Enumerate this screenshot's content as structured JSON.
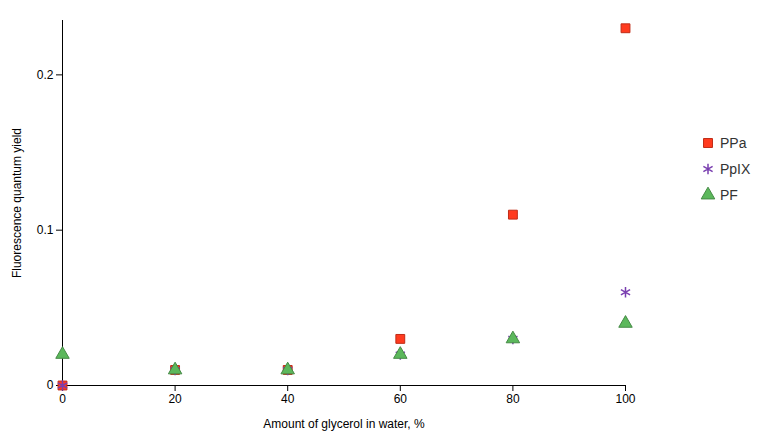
{
  "chart_data": {
    "type": "scatter",
    "x_label": "Amount of glycerol in water, %",
    "y_label": "Fluorescence quantum yield",
    "x": [
      0,
      20,
      40,
      60,
      80,
      100
    ],
    "series": [
      {
        "name": "PPa",
        "color": "#ff3b1f",
        "marker": "square",
        "values": [
          0,
          0.01,
          0.01,
          0.03,
          0.11,
          0.23
        ]
      },
      {
        "name": "PpIX",
        "color": "#7a3fb0",
        "marker": "asterisk",
        "values": [
          0,
          0.01,
          0.01,
          0.02,
          0.03,
          0.06
        ]
      },
      {
        "name": "PF",
        "color": "#5cb85c",
        "marker": "triangle",
        "values": [
          0.02,
          0.01,
          0.01,
          0.02,
          0.03,
          0.04
        ]
      }
    ],
    "xlim": [
      0,
      100
    ],
    "ylim": [
      0,
      0.235
    ],
    "xticks": [
      0,
      20,
      40,
      60,
      80,
      100
    ],
    "yticks": [
      0,
      0.1,
      0.2
    ],
    "grid": false,
    "legend": "right"
  }
}
